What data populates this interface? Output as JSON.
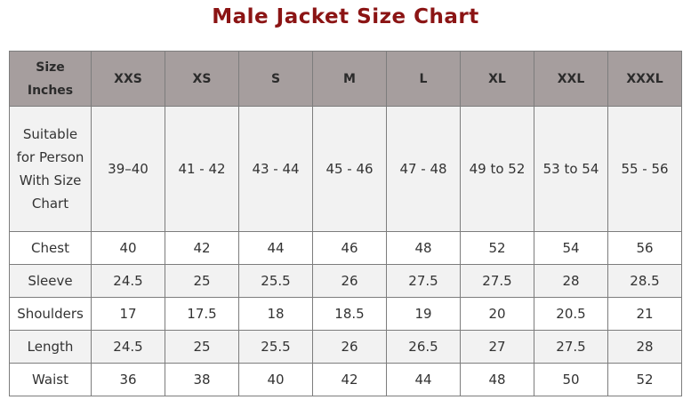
{
  "title": "Male Jacket Size Chart",
  "table": {
    "header": [
      "Size Inches",
      "XXS",
      "XS",
      "S",
      "M",
      "L",
      "XL",
      "XXL",
      "XXXL"
    ],
    "rows": [
      {
        "label": "Suitable for Person With Size Chart",
        "values": [
          "39–40",
          "41 - 42",
          "43 - 44",
          "45 - 46",
          "47 - 48",
          "49 to 52",
          "53 to 54",
          "55 - 56"
        ]
      },
      {
        "label": "Chest",
        "values": [
          "40",
          "42",
          "44",
          "46",
          "48",
          "52",
          "54",
          "56"
        ]
      },
      {
        "label": "Sleeve",
        "values": [
          "24.5",
          "25",
          "25.5",
          "26",
          "27.5",
          "27.5",
          "28",
          "28.5"
        ]
      },
      {
        "label": "Shoulders",
        "values": [
          "17",
          "17.5",
          "18",
          "18.5",
          "19",
          "20",
          "20.5",
          "21"
        ]
      },
      {
        "label": "Length",
        "values": [
          "24.5",
          "25",
          "25.5",
          "26",
          "26.5",
          "27",
          "27.5",
          "28"
        ]
      },
      {
        "label": "Waist",
        "values": [
          "36",
          "38",
          "40",
          "42",
          "44",
          "48",
          "50",
          "52"
        ]
      }
    ]
  },
  "colors": {
    "title": "#8b1414",
    "header_bg": "#a69e9e",
    "stripe": "#f2f2f2",
    "border": "#7d7d7d"
  }
}
